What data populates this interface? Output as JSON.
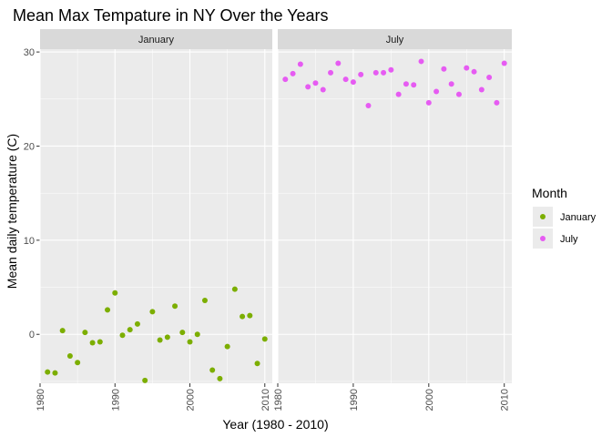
{
  "chart_data": {
    "type": "scatter",
    "title": "Mean Max Tempature in NY Over the Years",
    "xlabel": "Year (1980 - 2010)",
    "ylabel": "Mean daily temperature (C)",
    "xlim": [
      1980,
      2011
    ],
    "ylim": [
      -5.2,
      30.3
    ],
    "x_ticks": [
      1980,
      1990,
      2000,
      2010
    ],
    "y_ticks": [
      0,
      10,
      20,
      30
    ],
    "grid": true,
    "facets": [
      "January",
      "July"
    ],
    "legend": {
      "title": "Month",
      "placement": "right",
      "entries": [
        "January",
        "July"
      ]
    },
    "colors": {
      "January": "#7CAE00",
      "July": "#E65BF2"
    },
    "series": [
      {
        "name": "January",
        "facet": "January",
        "x": [
          1981,
          1982,
          1983,
          1984,
          1985,
          1986,
          1987,
          1988,
          1989,
          1990,
          1991,
          1992,
          1993,
          1994,
          1995,
          1996,
          1997,
          1998,
          1999,
          2000,
          2001,
          2002,
          2003,
          2004,
          2005,
          2006,
          2007,
          2008,
          2009,
          2010
        ],
        "y": [
          -4.0,
          -4.1,
          0.4,
          -2.3,
          -3.0,
          0.2,
          -0.9,
          -0.8,
          2.6,
          4.4,
          -0.1,
          0.5,
          1.1,
          -4.9,
          2.4,
          -0.6,
          -0.3,
          3.0,
          0.2,
          -0.8,
          0.0,
          3.6,
          -3.8,
          -4.7,
          -1.3,
          4.8,
          1.9,
          2.0,
          -3.1,
          -0.5
        ]
      },
      {
        "name": "July",
        "facet": "July",
        "x": [
          1981,
          1982,
          1983,
          1984,
          1985,
          1986,
          1987,
          1988,
          1989,
          1990,
          1991,
          1992,
          1993,
          1994,
          1995,
          1996,
          1997,
          1998,
          1999,
          2000,
          2001,
          2002,
          2003,
          2004,
          2005,
          2006,
          2007,
          2008,
          2009,
          2010
        ],
        "y": [
          27.1,
          27.7,
          28.7,
          26.3,
          26.7,
          26.0,
          27.8,
          28.8,
          27.1,
          26.8,
          27.6,
          24.3,
          27.8,
          27.8,
          28.1,
          25.5,
          26.6,
          26.5,
          29.0,
          24.6,
          25.8,
          28.2,
          26.6,
          25.5,
          28.3,
          27.9,
          26.0,
          27.3,
          24.6,
          28.8
        ]
      }
    ]
  }
}
